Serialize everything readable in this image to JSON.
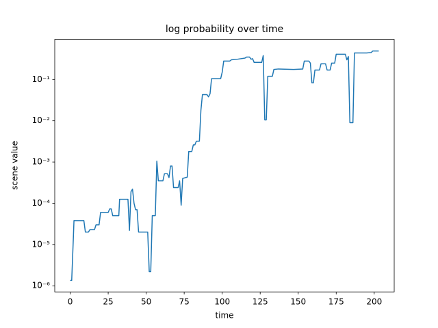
{
  "chart_data": {
    "type": "line",
    "title": "log probability over time",
    "x_label": "time",
    "y_label": "scene value",
    "yscale": "log",
    "grid": false,
    "xlim": [
      -10.15,
      213.15
    ],
    "ylim": [
      7.1e-07,
      0.94
    ],
    "xticks": [
      0,
      25,
      50,
      75,
      100,
      125,
      150,
      175,
      200
    ],
    "yticks": [
      {
        "value": 1e-06,
        "label": "10⁻⁶"
      },
      {
        "value": 1e-05,
        "label": "10⁻⁵"
      },
      {
        "value": 0.0001,
        "label": "10⁻⁴"
      },
      {
        "value": 0.001,
        "label": "10⁻³"
      },
      {
        "value": 0.01,
        "label": "10⁻²"
      },
      {
        "value": 0.1,
        "label": "10⁻¹"
      }
    ],
    "x": [
      0,
      1,
      2,
      2.5,
      9,
      10,
      12,
      13,
      16,
      17,
      19,
      20,
      25,
      26,
      27,
      28,
      32,
      32.5,
      38,
      39,
      40,
      41,
      42,
      43,
      44,
      45,
      51,
      52,
      53,
      54,
      56,
      57,
      58,
      61,
      62,
      64,
      65,
      66,
      67,
      68,
      71,
      72,
      73,
      74,
      77,
      78,
      80,
      81,
      82,
      83,
      85,
      86,
      87,
      90,
      91,
      92,
      93,
      99,
      100,
      101,
      105,
      106,
      110,
      115,
      116,
      118,
      119,
      120,
      121,
      126,
      127,
      128,
      129,
      130,
      133,
      134,
      137,
      147,
      153,
      154,
      157,
      158,
      159,
      160,
      161,
      164,
      165,
      168,
      169,
      171,
      172,
      174,
      175,
      181,
      182,
      183,
      184,
      186,
      187,
      195,
      198,
      199,
      203
    ],
    "series": [
      {
        "name": "scene value",
        "color": "#1f77b4",
        "values": [
          1.35e-06,
          1.35e-06,
          1.2e-05,
          3.8e-05,
          3.8e-05,
          2e-05,
          2e-05,
          2.3e-05,
          2.3e-05,
          3e-05,
          3e-05,
          6e-05,
          6e-05,
          7.3e-05,
          7.3e-05,
          5e-05,
          5e-05,
          0.000125,
          0.000125,
          2.2e-05,
          0.00019,
          0.00022,
          0.0001,
          7e-05,
          7e-05,
          2e-05,
          2e-05,
          2.2e-06,
          2.2e-06,
          5e-05,
          5e-05,
          0.00105,
          0.00035,
          0.00035,
          0.00052,
          0.00052,
          0.00042,
          0.0008,
          0.0008,
          0.00024,
          0.00024,
          0.00035,
          9e-05,
          0.0004,
          0.00043,
          0.0018,
          0.0018,
          0.0026,
          0.0026,
          0.0032,
          0.0032,
          0.018,
          0.043,
          0.043,
          0.038,
          0.045,
          0.105,
          0.105,
          0.15,
          0.28,
          0.28,
          0.3,
          0.31,
          0.33,
          0.35,
          0.35,
          0.31,
          0.32,
          0.26,
          0.26,
          0.38,
          0.0105,
          0.0105,
          0.12,
          0.12,
          0.175,
          0.18,
          0.175,
          0.18,
          0.28,
          0.28,
          0.25,
          0.083,
          0.083,
          0.17,
          0.17,
          0.24,
          0.24,
          0.17,
          0.17,
          0.25,
          0.25,
          0.41,
          0.41,
          0.3,
          0.36,
          0.009,
          0.009,
          0.44,
          0.44,
          0.45,
          0.49,
          0.49
        ]
      }
    ]
  }
}
